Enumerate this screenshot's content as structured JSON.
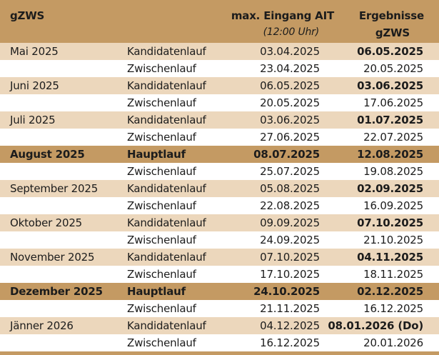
{
  "header": {
    "col1": "gZWS",
    "col3_line1": "max. Eingang AIT",
    "col3_line2": "(12:00 Uhr)",
    "col4_line1": "Ergebnisse",
    "col4_line2": "gZWS"
  },
  "rows": [
    {
      "month": "Mai 2025",
      "type": "Kandidatenlauf",
      "deadline": "03.04.2025",
      "result": "06.05.2025",
      "style": "band",
      "result_bold": true
    },
    {
      "month": "",
      "type": "Zwischenlauf",
      "deadline": "23.04.2025",
      "result": "20.05.2025",
      "style": "light",
      "result_bold": false
    },
    {
      "month": "Juni 2025",
      "type": "Kandidatenlauf",
      "deadline": "06.05.2025",
      "result": "03.06.2025",
      "style": "band",
      "result_bold": true
    },
    {
      "month": "",
      "type": "Zwischenlauf",
      "deadline": "20.05.2025",
      "result": "17.06.2025",
      "style": "light",
      "result_bold": false
    },
    {
      "month": "Juli 2025",
      "type": "Kandidatenlauf",
      "deadline": "03.06.2025",
      "result": "01.07.2025",
      "style": "band",
      "result_bold": true
    },
    {
      "month": "",
      "type": "Zwischenlauf",
      "deadline": "27.06.2025",
      "result": "22.07.2025",
      "style": "light",
      "result_bold": false
    },
    {
      "month": "August 2025",
      "type": "Hauptlauf",
      "deadline": "08.07.2025",
      "result": "12.08.2025",
      "style": "main",
      "result_bold": true
    },
    {
      "month": "",
      "type": "Zwischenlauf",
      "deadline": "25.07.2025",
      "result": "19.08.2025",
      "style": "light",
      "result_bold": false
    },
    {
      "month": "September 2025",
      "type": "Kandidatenlauf",
      "deadline": "05.08.2025",
      "result": "02.09.2025",
      "style": "band",
      "result_bold": true
    },
    {
      "month": "",
      "type": "Zwischenlauf",
      "deadline": "22.08.2025",
      "result": "16.09.2025",
      "style": "light",
      "result_bold": false
    },
    {
      "month": "Oktober 2025",
      "type": "Kandidatenlauf",
      "deadline": "09.09.2025",
      "result": "07.10.2025",
      "style": "band",
      "result_bold": true
    },
    {
      "month": "",
      "type": "Zwischenlauf",
      "deadline": "24.09.2025",
      "result": "21.10.2025",
      "style": "light",
      "result_bold": false
    },
    {
      "month": "November 2025",
      "type": "Kandidatenlauf",
      "deadline": "07.10.2025",
      "result": "04.11.2025",
      "style": "band",
      "result_bold": true
    },
    {
      "month": "",
      "type": "Zwischenlauf",
      "deadline": "17.10.2025",
      "result": "18.11.2025",
      "style": "light",
      "result_bold": false
    },
    {
      "month": "Dezember 2025",
      "type": "Hauptlauf",
      "deadline": "24.10.2025",
      "result": "02.12.2025",
      "style": "main",
      "result_bold": true
    },
    {
      "month": "",
      "type": "Zwischenlauf",
      "deadline": "21.11.2025",
      "result": "16.12.2025",
      "style": "light",
      "result_bold": false
    },
    {
      "month": "Jänner 2026",
      "type": "Kandidatenlauf",
      "deadline": "04.12.2025",
      "result": "08.01.2026 (Do)",
      "style": "band",
      "result_bold": true
    },
    {
      "month": "",
      "type": "Zwischenlauf",
      "deadline": "16.12.2025",
      "result": "20.01.2026",
      "style": "light",
      "result_bold": false
    }
  ]
}
